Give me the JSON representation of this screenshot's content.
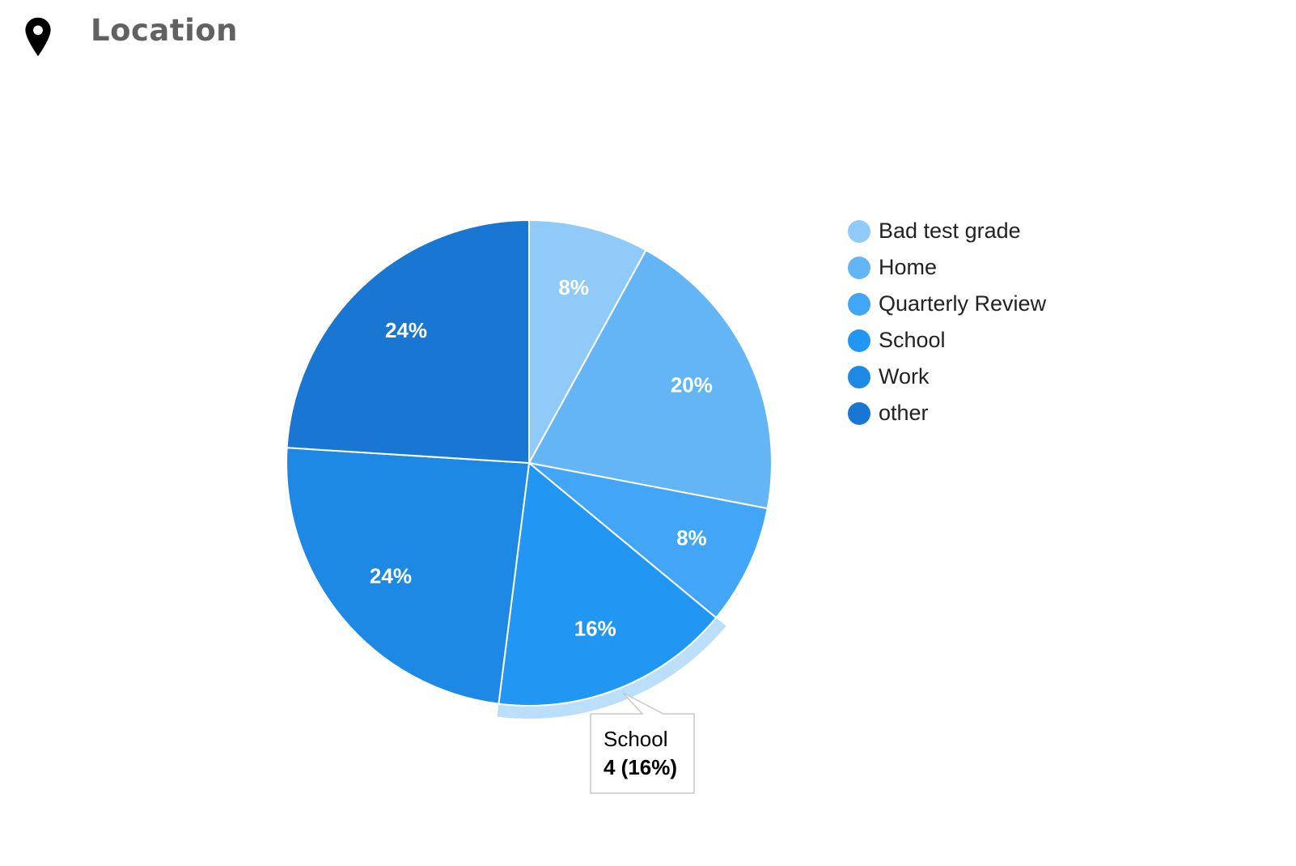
{
  "header": {
    "icon": "map-pin-icon",
    "title": "Location"
  },
  "chart_data": {
    "type": "pie",
    "title": "Location",
    "slices": [
      {
        "label": "Bad test grade",
        "value": 2,
        "percent_label": "8%",
        "color": "#90caf9"
      },
      {
        "label": "Home",
        "value": 5,
        "percent_label": "20%",
        "color": "#64b5f6"
      },
      {
        "label": "Quarterly Review",
        "value": 2,
        "percent_label": "8%",
        "color": "#42a5f5"
      },
      {
        "label": "School",
        "value": 4,
        "percent_label": "16%",
        "color": "#2196f3"
      },
      {
        "label": "Work",
        "value": 6,
        "percent_label": "24%",
        "color": "#1e88e5"
      },
      {
        "label": "other",
        "value": 6,
        "percent_label": "24%",
        "color": "#1976d2"
      }
    ],
    "legend_position": "right",
    "highlighted": "School",
    "highlight_color": "#bbdefb"
  },
  "tooltip": {
    "label": "School",
    "value": "4 (16%)"
  }
}
